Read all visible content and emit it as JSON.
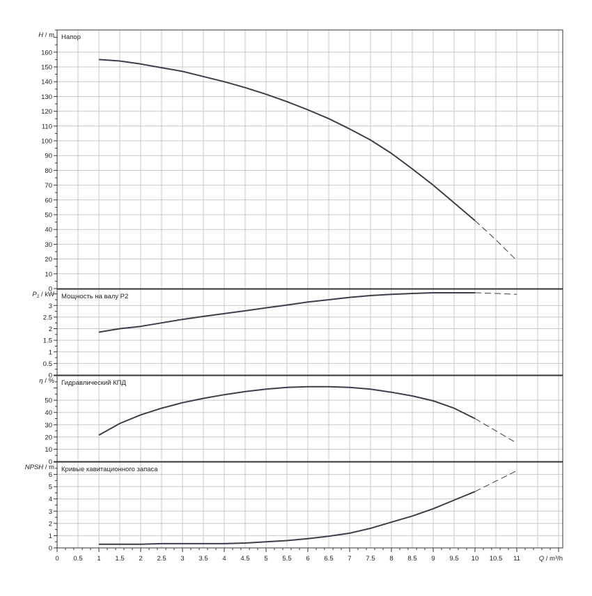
{
  "chart_data": [
    {
      "type": "line",
      "title": "Напор",
      "ylabel": {
        "sym": "H",
        "unit": "m"
      },
      "ylim": [
        0,
        175
      ],
      "yticks": [
        0,
        10,
        20,
        30,
        40,
        50,
        60,
        70,
        80,
        90,
        100,
        110,
        120,
        130,
        140,
        150,
        160
      ],
      "series": [
        {
          "x": [
            1,
            1.5,
            2,
            2.5,
            3,
            3.5,
            4,
            4.5,
            5,
            5.5,
            6,
            6.5,
            7,
            7.5,
            8,
            8.5,
            9,
            9.5,
            10
          ],
          "y": [
            155,
            154,
            152,
            149.5,
            147,
            143.5,
            140,
            136,
            131.5,
            126.5,
            121,
            115,
            108,
            100.5,
            91.5,
            81,
            70,
            58,
            46
          ]
        },
        {
          "style": "dashed",
          "x": [
            10,
            10.5,
            11
          ],
          "y": [
            46,
            33,
            19
          ]
        }
      ]
    },
    {
      "type": "line",
      "title": "Мощность на валу P2",
      "ylabel": {
        "sym": "P",
        "sub": "2",
        "unit": "kW"
      },
      "ylim": [
        0,
        3.7
      ],
      "yticks": [
        0,
        0.5,
        1,
        1.5,
        2,
        2.5,
        3
      ],
      "series": [
        {
          "x": [
            1,
            1.5,
            2,
            2.5,
            3,
            3.5,
            4,
            4.5,
            5,
            5.5,
            6,
            6.5,
            7,
            7.5,
            8,
            8.5,
            9,
            9.5,
            10
          ],
          "y": [
            1.85,
            2.0,
            2.1,
            2.25,
            2.4,
            2.53,
            2.65,
            2.77,
            2.9,
            3.02,
            3.15,
            3.25,
            3.35,
            3.43,
            3.48,
            3.52,
            3.55,
            3.55,
            3.55
          ]
        },
        {
          "style": "dashed",
          "x": [
            10,
            10.5,
            11
          ],
          "y": [
            3.55,
            3.52,
            3.48
          ]
        }
      ]
    },
    {
      "type": "line",
      "title": "Гидравлический КПД",
      "ylabel": {
        "sym": "η",
        "unit": "%"
      },
      "ylim": [
        0,
        70
      ],
      "yticks": [
        0,
        10,
        20,
        30,
        40,
        50
      ],
      "series": [
        {
          "x": [
            1,
            1.5,
            2,
            2.5,
            3,
            3.5,
            4,
            4.5,
            5,
            5.5,
            6,
            6.5,
            7,
            7.5,
            8,
            8.5,
            9,
            9.5,
            10
          ],
          "y": [
            21.5,
            31,
            38,
            43.5,
            48,
            51.5,
            54.5,
            57,
            59,
            60.5,
            61,
            61,
            60.5,
            59,
            56.5,
            53.5,
            49.5,
            43.5,
            35
          ]
        },
        {
          "style": "dashed",
          "x": [
            10,
            10.5,
            11
          ],
          "y": [
            35,
            25,
            15
          ]
        }
      ]
    },
    {
      "type": "line",
      "title": "Кривые кавитационного запаса",
      "ylabel": {
        "sym": "NPSH",
        "unit": "m"
      },
      "ylim": [
        0,
        7
      ],
      "yticks": [
        0,
        1,
        2,
        3,
        4,
        5,
        6
      ],
      "xlabel": {
        "sym": "Q",
        "unit": "m³/h"
      },
      "xlim": [
        0,
        12.1
      ],
      "xticks": [
        "0",
        "0.5",
        "1",
        "1.5",
        "2",
        "2.5",
        "3",
        "3.5",
        "4",
        "4.5",
        "5",
        "5.5",
        "6",
        "6.5",
        "7",
        "7.5",
        "8",
        "8.5",
        "9",
        "9.5",
        "10",
        "10.5",
        "11"
      ],
      "series": [
        {
          "x": [
            1,
            1.5,
            2,
            2.5,
            3,
            3.5,
            4,
            4.5,
            5,
            5.5,
            6,
            6.5,
            7,
            7.5,
            8,
            8.5,
            9,
            9.5,
            10
          ],
          "y": [
            0.3,
            0.3,
            0.3,
            0.35,
            0.35,
            0.35,
            0.35,
            0.4,
            0.5,
            0.6,
            0.75,
            0.95,
            1.2,
            1.6,
            2.1,
            2.6,
            3.2,
            3.9,
            4.6
          ]
        },
        {
          "style": "dashed",
          "x": [
            10,
            10.5,
            11
          ],
          "y": [
            4.6,
            5.45,
            6.3
          ]
        }
      ]
    }
  ]
}
